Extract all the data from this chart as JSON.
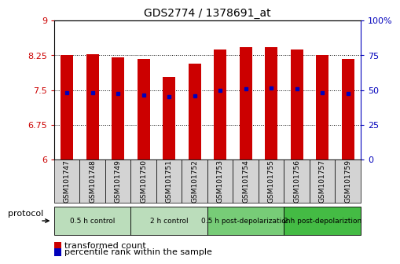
{
  "title": "GDS2774 / 1378691_at",
  "samples": [
    "GSM101747",
    "GSM101748",
    "GSM101749",
    "GSM101750",
    "GSM101751",
    "GSM101752",
    "GSM101753",
    "GSM101754",
    "GSM101755",
    "GSM101756",
    "GSM101757",
    "GSM101759"
  ],
  "bar_tops": [
    8.25,
    8.28,
    8.2,
    8.17,
    7.78,
    8.07,
    8.38,
    8.43,
    8.43,
    8.38,
    8.25,
    8.17
  ],
  "bar_bottoms": [
    6.0,
    6.0,
    6.0,
    6.0,
    6.0,
    6.0,
    6.0,
    6.0,
    6.0,
    6.0,
    6.0,
    6.0
  ],
  "percentile_values": [
    7.45,
    7.45,
    7.42,
    7.4,
    7.36,
    7.37,
    7.5,
    7.52,
    7.55,
    7.52,
    7.45,
    7.42
  ],
  "bar_color": "#cc0000",
  "percentile_color": "#0000bb",
  "ylim_left": [
    6,
    9
  ],
  "ylim_right": [
    0,
    100
  ],
  "yticks_left": [
    6,
    6.75,
    7.5,
    8.25,
    9
  ],
  "yticks_right": [
    0,
    25,
    50,
    75,
    100
  ],
  "ylabel_left_color": "#cc0000",
  "ylabel_right_color": "#0000bb",
  "protocol_groups": [
    {
      "label": "0.5 h control",
      "start": 0,
      "end": 3,
      "color": "#bbddbb"
    },
    {
      "label": "2 h control",
      "start": 3,
      "end": 6,
      "color": "#bbddbb"
    },
    {
      "label": "0.5 h post-depolarization",
      "start": 6,
      "end": 9,
      "color": "#77cc77"
    },
    {
      "label": "2 h post-depolariztion",
      "start": 9,
      "end": 12,
      "color": "#44bb44"
    }
  ],
  "protocol_label": "protocol",
  "legend_red_label": "transformed count",
  "legend_blue_label": "percentile rank within the sample",
  "bar_width": 0.5
}
